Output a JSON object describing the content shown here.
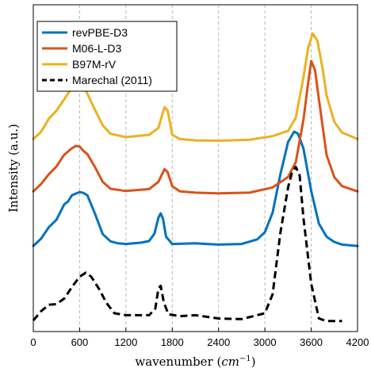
{
  "chart_data": {
    "type": "line",
    "xlabel": "wavenumber",
    "xlabel_unit_base": "cm",
    "xlabel_unit_exp": "−1",
    "ylabel": "Intensity (a.u.)",
    "xlim": [
      0,
      4200
    ],
    "xticks": [
      0,
      600,
      1200,
      1800,
      2400,
      3000,
      3600,
      4200
    ],
    "ylim": [
      0,
      1
    ],
    "yticks_shown": false,
    "grid": "vertical dashed",
    "legend_position": "top-left",
    "series": [
      {
        "name": "revPBE-D3",
        "color": "#0072bd",
        "style": "solid",
        "points": [
          [
            0,
            0.262
          ],
          [
            100,
            0.284
          ],
          [
            200,
            0.319
          ],
          [
            300,
            0.342
          ],
          [
            400,
            0.389
          ],
          [
            450,
            0.398
          ],
          [
            500,
            0.417
          ],
          [
            550,
            0.422
          ],
          [
            600,
            0.427
          ],
          [
            650,
            0.424
          ],
          [
            700,
            0.417
          ],
          [
            750,
            0.389
          ],
          [
            800,
            0.36
          ],
          [
            900,
            0.298
          ],
          [
            1000,
            0.276
          ],
          [
            1100,
            0.27
          ],
          [
            1200,
            0.268
          ],
          [
            1300,
            0.27
          ],
          [
            1400,
            0.272
          ],
          [
            1500,
            0.277
          ],
          [
            1570,
            0.3
          ],
          [
            1620,
            0.348
          ],
          [
            1650,
            0.362
          ],
          [
            1680,
            0.345
          ],
          [
            1720,
            0.29
          ],
          [
            1800,
            0.268
          ],
          [
            2100,
            0.27
          ],
          [
            2400,
            0.266
          ],
          [
            2700,
            0.268
          ],
          [
            2900,
            0.282
          ],
          [
            3000,
            0.304
          ],
          [
            3100,
            0.364
          ],
          [
            3200,
            0.48
          ],
          [
            3300,
            0.58
          ],
          [
            3380,
            0.612
          ],
          [
            3430,
            0.605
          ],
          [
            3500,
            0.56
          ],
          [
            3600,
            0.43
          ],
          [
            3700,
            0.33
          ],
          [
            3800,
            0.29
          ],
          [
            3900,
            0.274
          ],
          [
            4000,
            0.266
          ],
          [
            4200,
            0.262
          ]
        ]
      },
      {
        "name": "M06-L-D3",
        "color": "#d95319",
        "style": "solid",
        "points": [
          [
            0,
            0.429
          ],
          [
            100,
            0.451
          ],
          [
            200,
            0.481
          ],
          [
            300,
            0.505
          ],
          [
            400,
            0.541
          ],
          [
            500,
            0.561
          ],
          [
            550,
            0.568
          ],
          [
            600,
            0.566
          ],
          [
            650,
            0.553
          ],
          [
            700,
            0.543
          ],
          [
            800,
            0.503
          ],
          [
            900,
            0.458
          ],
          [
            1000,
            0.437
          ],
          [
            1200,
            0.43
          ],
          [
            1500,
            0.436
          ],
          [
            1620,
            0.458
          ],
          [
            1700,
            0.497
          ],
          [
            1740,
            0.488
          ],
          [
            1800,
            0.445
          ],
          [
            1900,
            0.429
          ],
          [
            2100,
            0.425
          ],
          [
            2400,
            0.423
          ],
          [
            2800,
            0.425
          ],
          [
            3100,
            0.441
          ],
          [
            3300,
            0.473
          ],
          [
            3400,
            0.518
          ],
          [
            3500,
            0.648
          ],
          [
            3550,
            0.742
          ],
          [
            3600,
            0.828
          ],
          [
            3650,
            0.8
          ],
          [
            3700,
            0.71
          ],
          [
            3800,
            0.54
          ],
          [
            3900,
            0.472
          ],
          [
            4000,
            0.445
          ],
          [
            4200,
            0.429
          ]
        ]
      },
      {
        "name": "B97M-rV",
        "color": "#edb120",
        "style": "solid",
        "points": [
          [
            0,
            0.589
          ],
          [
            100,
            0.611
          ],
          [
            200,
            0.651
          ],
          [
            300,
            0.676
          ],
          [
            400,
            0.711
          ],
          [
            500,
            0.746
          ],
          [
            550,
            0.758
          ],
          [
            600,
            0.761
          ],
          [
            650,
            0.749
          ],
          [
            700,
            0.728
          ],
          [
            800,
            0.678
          ],
          [
            900,
            0.631
          ],
          [
            1000,
            0.605
          ],
          [
            1200,
            0.595
          ],
          [
            1500,
            0.602
          ],
          [
            1620,
            0.623
          ],
          [
            1700,
            0.687
          ],
          [
            1740,
            0.677
          ],
          [
            1800,
            0.602
          ],
          [
            1900,
            0.589
          ],
          [
            2100,
            0.585
          ],
          [
            2400,
            0.584
          ],
          [
            2800,
            0.587
          ],
          [
            3100,
            0.598
          ],
          [
            3300,
            0.614
          ],
          [
            3400,
            0.654
          ],
          [
            3500,
            0.778
          ],
          [
            3560,
            0.868
          ],
          [
            3620,
            0.912
          ],
          [
            3680,
            0.89
          ],
          [
            3750,
            0.801
          ],
          [
            3800,
            0.722
          ],
          [
            3900,
            0.641
          ],
          [
            4000,
            0.609
          ],
          [
            4200,
            0.589
          ]
        ]
      },
      {
        "name": "Marechal (2011)",
        "color": "#000000",
        "style": "dashed",
        "points": [
          [
            0,
            0.034
          ],
          [
            100,
            0.062
          ],
          [
            200,
            0.082
          ],
          [
            300,
            0.084
          ],
          [
            400,
            0.101
          ],
          [
            500,
            0.136
          ],
          [
            600,
            0.168
          ],
          [
            680,
            0.18
          ],
          [
            750,
            0.168
          ],
          [
            850,
            0.131
          ],
          [
            950,
            0.087
          ],
          [
            1050,
            0.056
          ],
          [
            1200,
            0.05
          ],
          [
            1500,
            0.05
          ],
          [
            1580,
            0.07
          ],
          [
            1620,
            0.131
          ],
          [
            1650,
            0.14
          ],
          [
            1690,
            0.09
          ],
          [
            1750,
            0.053
          ],
          [
            1900,
            0.047
          ],
          [
            2100,
            0.05
          ],
          [
            2400,
            0.04
          ],
          [
            2700,
            0.038
          ],
          [
            3000,
            0.056
          ],
          [
            3100,
            0.114
          ],
          [
            3200,
            0.301
          ],
          [
            3300,
            0.441
          ],
          [
            3350,
            0.486
          ],
          [
            3400,
            0.504
          ],
          [
            3450,
            0.478
          ],
          [
            3500,
            0.347
          ],
          [
            3600,
            0.146
          ],
          [
            3700,
            0.04
          ],
          [
            3800,
            0.032
          ],
          [
            4000,
            0.032
          ]
        ]
      }
    ]
  }
}
